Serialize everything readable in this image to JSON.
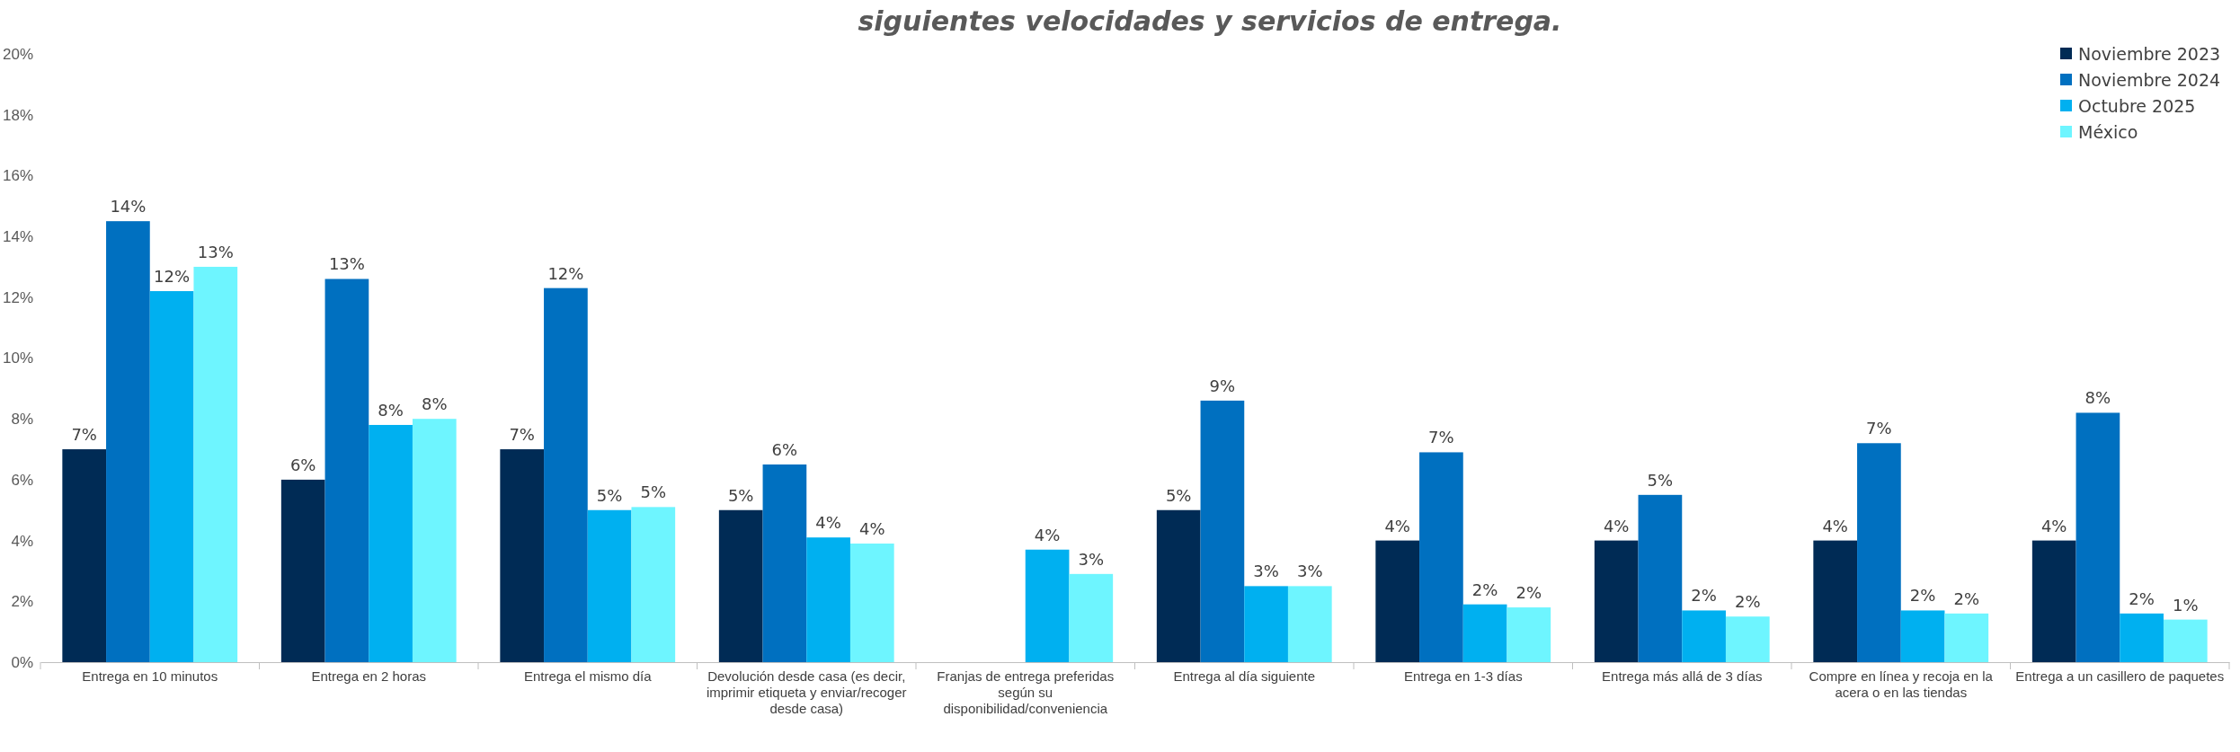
{
  "chart_data": {
    "type": "bar",
    "title": "siguientes velocidades y servicios de entrega.",
    "categories": [
      "Entrega en 10 minutos",
      "Entrega en 2 horas",
      "Entrega el mismo día",
      "Devolución desde casa (es decir, imprimir etiqueta y enviar/recoger desde casa)",
      "Franjas de entrega preferidas según su disponibilidad/conveniencia",
      "Entrega al día siguiente",
      "Entrega en 1-3 días",
      "Entrega más allá de 3 días",
      "Compre en línea y recoja en la acera o en las tiendas",
      "Entrega a un casillero de paquetes"
    ],
    "series": [
      {
        "name": "Noviembre 2023",
        "color": "#002b55",
        "values": [
          7.0,
          6.0,
          7.0,
          5.0,
          null,
          5.0,
          4.0,
          4.0,
          4.0,
          4.0
        ],
        "value_labels": [
          "7%",
          "6%",
          "7%",
          "5%",
          null,
          "5%",
          "4%",
          "4%",
          "4%",
          "4%"
        ]
      },
      {
        "name": "Noviembre 2024",
        "color": "#0070c0",
        "values": [
          14.5,
          12.6,
          12.3,
          6.5,
          null,
          8.6,
          6.9,
          5.5,
          7.2,
          8.2
        ],
        "value_labels": [
          "14%",
          "13%",
          "12%",
          "6%",
          null,
          "9%",
          "7%",
          "5%",
          "7%",
          "8%"
        ]
      },
      {
        "name": "Octubre 2025",
        "color": "#00b0f0",
        "values": [
          12.2,
          7.8,
          5.0,
          4.1,
          3.7,
          2.5,
          1.9,
          1.7,
          1.7,
          1.6
        ],
        "value_labels": [
          "12%",
          "8%",
          "5%",
          "4%",
          "4%",
          "3%",
          "2%",
          "2%",
          "2%",
          "2%"
        ]
      },
      {
        "name": "México",
        "color": "#6ef5ff",
        "values": [
          13.0,
          8.0,
          5.1,
          3.9,
          2.9,
          2.5,
          1.8,
          1.5,
          1.6,
          1.4
        ],
        "value_labels": [
          "13%",
          "8%",
          "5%",
          "4%",
          "3%",
          "3%",
          "2%",
          "2%",
          "2%",
          "1%"
        ]
      }
    ],
    "ylim": [
      0,
      20
    ],
    "yticks": [
      {
        "value": 0,
        "label": "0%"
      },
      {
        "value": 2,
        "label": "2%"
      },
      {
        "value": 4,
        "label": "4%"
      },
      {
        "value": 6,
        "label": "6%"
      },
      {
        "value": 8,
        "label": "8%"
      },
      {
        "value": 10,
        "label": "10%"
      },
      {
        "value": 12,
        "label": "12%"
      },
      {
        "value": 14,
        "label": "14%"
      },
      {
        "value": 16,
        "label": "16%"
      },
      {
        "value": 18,
        "label": "18%"
      },
      {
        "value": 20,
        "label": "20%"
      }
    ],
    "grid": false,
    "legend": "top right"
  }
}
